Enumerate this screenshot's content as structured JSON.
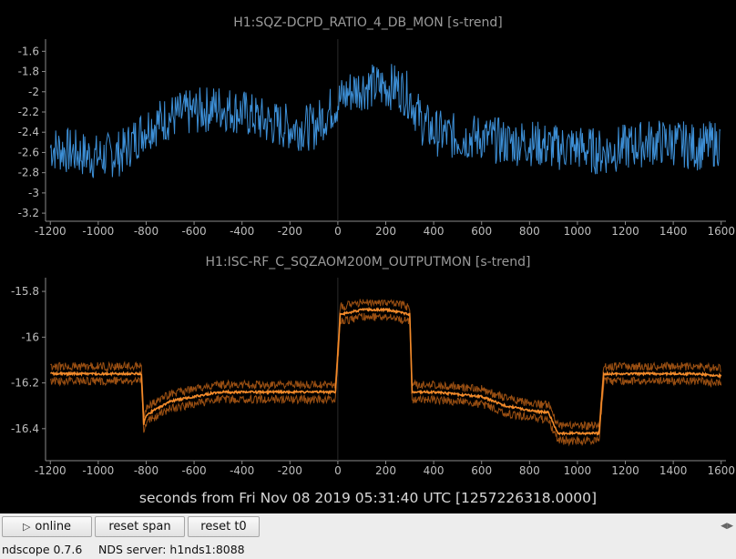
{
  "controls": {
    "online_label": "online",
    "online_icon": "play-icon",
    "reset_span_label": "reset span",
    "reset_t0_label": "reset t0"
  },
  "status": {
    "version": "ndscope 0.7.6",
    "server": "NDS server: h1nds1:8088"
  },
  "xlabel": "seconds from Fri Nov 08 2019 05:31:40 UTC [1257226318.0000]",
  "chart_data": [
    {
      "type": "line",
      "title": "H1:SQZ-DCPD_RATIO_4_DB_MON [s-trend]",
      "xlim": [
        -1220,
        1620
      ],
      "ylim": [
        -3.28,
        -1.48
      ],
      "xticks": [
        "-1200",
        "-1000",
        "-800",
        "-600",
        "-400",
        "-200",
        "0",
        "200",
        "400",
        "600",
        "800",
        "1000",
        "1200",
        "1400",
        "1600"
      ],
      "yticks": [
        "-1.6",
        "-1.8",
        "-2",
        "-2.2",
        "-2.4",
        "-2.6",
        "-2.8",
        "-3",
        "-3.2"
      ],
      "grid": false,
      "color": "#3d8fd6",
      "series": [
        {
          "x": [
            -1200,
            -1100,
            -1000,
            -900,
            -800,
            -700,
            -600,
            -500,
            -400,
            -300,
            -200,
            -100,
            0,
            50,
            100,
            150,
            200,
            250,
            300,
            350,
            400,
            500,
            600,
            700,
            800,
            900,
            1000,
            1100,
            1200,
            1300,
            1400,
            1500,
            1600
          ],
          "values": [
            -2.55,
            -2.6,
            -2.65,
            -2.6,
            -2.35,
            -2.25,
            -2.2,
            -2.15,
            -2.2,
            -2.3,
            -2.35,
            -2.35,
            -2.1,
            -2.0,
            -1.95,
            -1.95,
            -1.95,
            -1.95,
            -2.05,
            -2.3,
            -2.4,
            -2.45,
            -2.45,
            -2.5,
            -2.5,
            -2.55,
            -2.55,
            -2.6,
            -2.55,
            -2.5,
            -2.5,
            -2.55,
            -2.5
          ]
        }
      ]
    },
    {
      "type": "line",
      "title": "H1:ISC-RF_C_SQZAOM200M_OUTPUTMON [s-trend]",
      "xlim": [
        -1220,
        1620
      ],
      "ylim": [
        -16.54,
        -15.74
      ],
      "xticks": [
        "-1200",
        "-1000",
        "-800",
        "-600",
        "-400",
        "-200",
        "0",
        "200",
        "400",
        "600",
        "800",
        "1000",
        "1200",
        "1400",
        "1600"
      ],
      "yticks": [
        "-15.8",
        "-16",
        "-16.2",
        "-16.4"
      ],
      "grid": false,
      "color": "#f28a2a",
      "series": [
        {
          "x": [
            -1200,
            -820,
            -810,
            -800,
            -700,
            -600,
            -500,
            -400,
            -300,
            -200,
            -10,
            10,
            100,
            200,
            300,
            310,
            400,
            500,
            600,
            650,
            700,
            800,
            880,
            900,
            920,
            1000,
            1090,
            1110,
            1200,
            1300,
            1400,
            1500,
            1600
          ],
          "values": [
            -16.16,
            -16.16,
            -16.38,
            -16.34,
            -16.28,
            -16.26,
            -16.24,
            -16.24,
            -16.24,
            -16.24,
            -16.24,
            -15.9,
            -15.88,
            -15.88,
            -15.9,
            -16.24,
            -16.24,
            -16.25,
            -16.26,
            -16.28,
            -16.3,
            -16.32,
            -16.33,
            -16.38,
            -16.42,
            -16.42,
            -16.42,
            -16.16,
            -16.16,
            -16.16,
            -16.16,
            -16.16,
            -16.17
          ]
        }
      ]
    }
  ]
}
